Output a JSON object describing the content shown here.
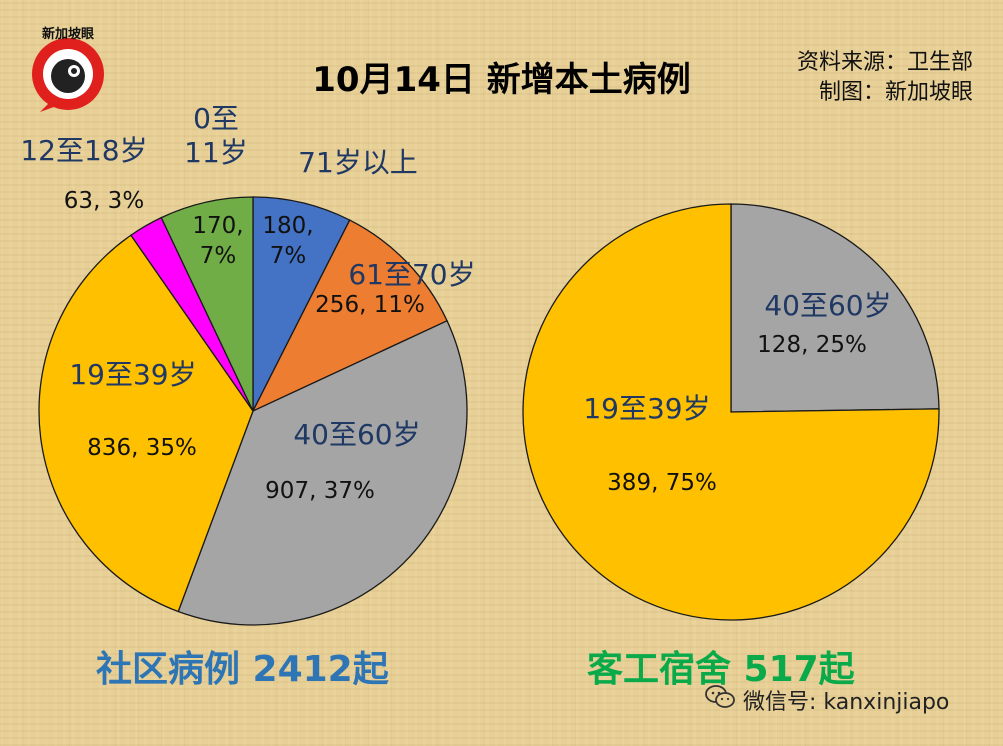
{
  "title": "10月14日 新增本土病例",
  "source_lines": [
    "资料来源：卫生部",
    "制图：新加坡眼"
  ],
  "logo_text": "新加坡眼",
  "watermark": "微信号: kanxinjiapo",
  "colors": {
    "blue": "#4472c4",
    "orange": "#ed7d31",
    "gray": "#a5a5a5",
    "gold": "#ffc000",
    "magenta": "#ff00ff",
    "green": "#70ad47",
    "caption_left": "#2e75b6",
    "caption_right": "#0aaa4a"
  },
  "chart_data": [
    {
      "type": "pie",
      "title": "社区病例 2412起",
      "slices": [
        {
          "category": "71岁以上",
          "value": 180,
          "percent": 7,
          "label": "180,\n7%",
          "color": "#4472c4"
        },
        {
          "category": "61至70岁",
          "value": 256,
          "percent": 11,
          "label": "256, 11%",
          "color": "#ed7d31"
        },
        {
          "category": "40至60岁",
          "value": 907,
          "percent": 37,
          "label": "907, 37%",
          "color": "#a5a5a5"
        },
        {
          "category": "19至39岁",
          "value": 836,
          "percent": 35,
          "label": "836, 35%",
          "color": "#ffc000"
        },
        {
          "category": "12至18岁",
          "value": 63,
          "percent": 3,
          "label": "63, 3%",
          "color": "#ff00ff"
        },
        {
          "category": "0至\n11岁",
          "value": 170,
          "percent": 7,
          "label": "170,\n7%",
          "color": "#70ad47"
        }
      ]
    },
    {
      "type": "pie",
      "title": "客工宿舍 517起",
      "slices": [
        {
          "category": "40至60岁",
          "value": 128,
          "percent": 25,
          "label": "128, 25%",
          "color": "#a5a5a5"
        },
        {
          "category": "19至39岁",
          "value": 389,
          "percent": 75,
          "label": "389, 75%",
          "color": "#ffc000"
        }
      ]
    }
  ]
}
